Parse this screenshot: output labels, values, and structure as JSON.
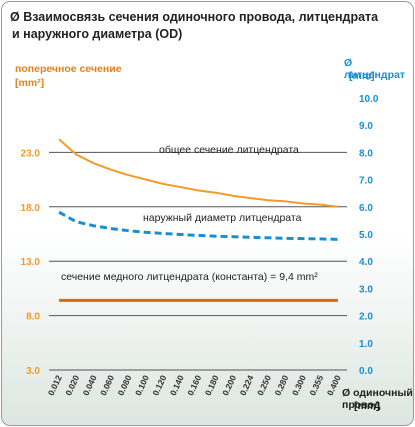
{
  "title": {
    "line1": "Ø Взаимосвязь сечения одиночного провода, литцендрата",
    "line2": "и наружного диаметра (OD)"
  },
  "axes": {
    "left_title": "поперечное сечение",
    "left_unit": "[mm²]",
    "right_title": "Ø литцендрат",
    "right_unit": "[mm]",
    "x_title_line1": "Ø одиночный",
    "x_title_line2": "провод",
    "x_unit": "[mm]"
  },
  "colors": {
    "orange": "#f39a2b",
    "const_line": "#e0661a",
    "blue": "#1a8fd0",
    "grid": "#555555"
  },
  "chart_data": {
    "type": "line",
    "x": [
      "0.012",
      "0.020",
      "0.040",
      "0.060",
      "0.080",
      "0.100",
      "0.120",
      "0.140",
      "0.160",
      "0.180",
      "0.200",
      "0.224",
      "0.250",
      "0.280",
      "0.300",
      "0.355",
      "0.400"
    ],
    "left_axis": {
      "ticks": [
        "3.0",
        "8.0",
        "13.0",
        "18.0",
        "23.0"
      ],
      "ylim": [
        3,
        28
      ]
    },
    "right_axis": {
      "ticks": [
        "0.0",
        "1.0",
        "2.0",
        "3.0",
        "4.0",
        "5.0",
        "6.0",
        "7.0",
        "8.0",
        "9.0",
        "10.0"
      ],
      "ylim": [
        0,
        10
      ]
    },
    "series": [
      {
        "name": "общее сечение литцендрата",
        "axis": "left",
        "style": "solid",
        "values": [
          24.2,
          22.8,
          22.0,
          21.4,
          20.9,
          20.5,
          20.1,
          19.8,
          19.5,
          19.3,
          19.0,
          18.8,
          18.6,
          18.5,
          18.3,
          18.2,
          18.0
        ]
      },
      {
        "name": "наружный диаметр литцендрата",
        "axis": "right",
        "style": "dashed",
        "values": [
          5.8,
          5.45,
          5.3,
          5.2,
          5.12,
          5.06,
          5.02,
          4.98,
          4.95,
          4.92,
          4.9,
          4.88,
          4.86,
          4.84,
          4.83,
          4.82,
          4.8
        ]
      },
      {
        "name": "сечение медного литцендрата (константа) = 9,4 mm²",
        "axis": "left",
        "style": "solid",
        "values": [
          9.4,
          9.4,
          9.4,
          9.4,
          9.4,
          9.4,
          9.4,
          9.4,
          9.4,
          9.4,
          9.4,
          9.4,
          9.4,
          9.4,
          9.4,
          9.4,
          9.4
        ]
      }
    ],
    "annotations": [
      "общее сечение литцендрата",
      "наружный диаметр литцендрата",
      "сечение медного литцендрата (константа) = 9,4 mm²"
    ]
  }
}
